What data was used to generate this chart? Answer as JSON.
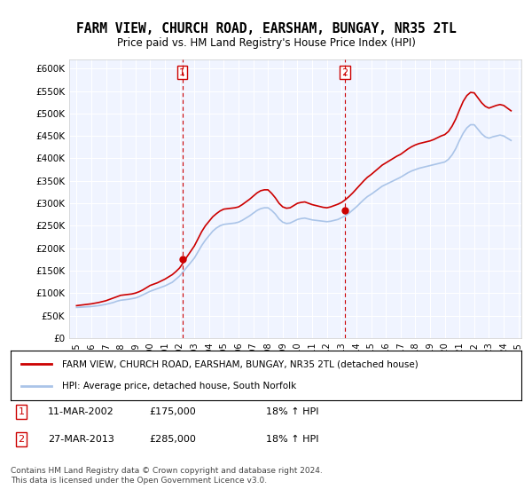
{
  "title": "FARM VIEW, CHURCH ROAD, EARSHAM, BUNGAY, NR35 2TL",
  "subtitle": "Price paid vs. HM Land Registry's House Price Index (HPI)",
  "title_fontsize": 11,
  "subtitle_fontsize": 9.5,
  "background_color": "#ffffff",
  "plot_bg_color": "#f0f4ff",
  "grid_color": "#ffffff",
  "hpi_color": "#aac4e8",
  "price_color": "#cc0000",
  "vline_color": "#cc0000",
  "xlabel": "",
  "ylabel": "",
  "ylim": [
    0,
    620000
  ],
  "yticks": [
    0,
    50000,
    100000,
    150000,
    200000,
    250000,
    300000,
    350000,
    400000,
    450000,
    500000,
    550000,
    600000
  ],
  "ytick_labels": [
    "£0",
    "£50K",
    "£100K",
    "£150K",
    "£200K",
    "£250K",
    "£300K",
    "£350K",
    "£400K",
    "£450K",
    "£500K",
    "£550K",
    "£600K"
  ],
  "sale1_date": 2002.19,
  "sale1_price": 175000,
  "sale1_label": "1",
  "sale2_date": 2013.23,
  "sale2_price": 285000,
  "sale2_label": "2",
  "legend_line1": "FARM VIEW, CHURCH ROAD, EARSHAM, BUNGAY, NR35 2TL (detached house)",
  "legend_line2": "HPI: Average price, detached house, South Norfolk",
  "table_rows": [
    [
      "1",
      "11-MAR-2002",
      "£175,000",
      "18% ↑ HPI"
    ],
    [
      "2",
      "27-MAR-2013",
      "£285,000",
      "18% ↑ HPI"
    ]
  ],
  "footnote": "Contains HM Land Registry data © Crown copyright and database right 2024.\nThis data is licensed under the Open Government Licence v3.0.",
  "hpi_data": {
    "years": [
      1995.0,
      1995.25,
      1995.5,
      1995.75,
      1996.0,
      1996.25,
      1996.5,
      1996.75,
      1997.0,
      1997.25,
      1997.5,
      1997.75,
      1998.0,
      1998.25,
      1998.5,
      1998.75,
      1999.0,
      1999.25,
      1999.5,
      1999.75,
      2000.0,
      2000.25,
      2000.5,
      2000.75,
      2001.0,
      2001.25,
      2001.5,
      2001.75,
      2002.0,
      2002.25,
      2002.5,
      2002.75,
      2003.0,
      2003.25,
      2003.5,
      2003.75,
      2004.0,
      2004.25,
      2004.5,
      2004.75,
      2005.0,
      2005.25,
      2005.5,
      2005.75,
      2006.0,
      2006.25,
      2006.5,
      2006.75,
      2007.0,
      2007.25,
      2007.5,
      2007.75,
      2008.0,
      2008.25,
      2008.5,
      2008.75,
      2009.0,
      2009.25,
      2009.5,
      2009.75,
      2010.0,
      2010.25,
      2010.5,
      2010.75,
      2011.0,
      2011.25,
      2011.5,
      2011.75,
      2012.0,
      2012.25,
      2012.5,
      2012.75,
      2013.0,
      2013.25,
      2013.5,
      2013.75,
      2014.0,
      2014.25,
      2014.5,
      2014.75,
      2015.0,
      2015.25,
      2015.5,
      2015.75,
      2016.0,
      2016.25,
      2016.5,
      2016.75,
      2017.0,
      2017.25,
      2017.5,
      2017.75,
      2018.0,
      2018.25,
      2018.5,
      2018.75,
      2019.0,
      2019.25,
      2019.5,
      2019.75,
      2020.0,
      2020.25,
      2020.5,
      2020.75,
      2021.0,
      2021.25,
      2021.5,
      2021.75,
      2022.0,
      2022.25,
      2022.5,
      2022.75,
      2023.0,
      2023.25,
      2023.5,
      2023.75,
      2024.0,
      2024.25,
      2024.5
    ],
    "values": [
      68000,
      68500,
      69000,
      69500,
      70000,
      71000,
      72000,
      73500,
      75000,
      77000,
      79000,
      82000,
      84000,
      85000,
      86000,
      87500,
      89000,
      92000,
      96000,
      100000,
      104000,
      107000,
      110000,
      113000,
      116000,
      120000,
      124000,
      131000,
      138000,
      148000,
      158000,
      168000,
      178000,
      192000,
      206000,
      218000,
      228000,
      238000,
      245000,
      250000,
      253000,
      254000,
      255000,
      256000,
      258000,
      262000,
      267000,
      272000,
      278000,
      284000,
      288000,
      290000,
      290000,
      284000,
      276000,
      265000,
      258000,
      255000,
      256000,
      260000,
      264000,
      266000,
      267000,
      265000,
      263000,
      262000,
      261000,
      260000,
      259000,
      260000,
      262000,
      264000,
      268000,
      272000,
      278000,
      285000,
      292000,
      300000,
      308000,
      315000,
      320000,
      326000,
      332000,
      338000,
      342000,
      346000,
      350000,
      354000,
      358000,
      363000,
      368000,
      372000,
      375000,
      378000,
      380000,
      382000,
      384000,
      386000,
      388000,
      390000,
      392000,
      398000,
      408000,
      422000,
      440000,
      456000,
      468000,
      475000,
      475000,
      465000,
      455000,
      448000,
      445000,
      448000,
      450000,
      452000,
      450000,
      445000,
      440000
    ]
  },
  "price_data": {
    "years": [
      1995.0,
      1995.25,
      1995.5,
      1995.75,
      1996.0,
      1996.25,
      1996.5,
      1996.75,
      1997.0,
      1997.25,
      1997.5,
      1997.75,
      1998.0,
      1998.25,
      1998.5,
      1998.75,
      1999.0,
      1999.25,
      1999.5,
      1999.75,
      2000.0,
      2000.25,
      2000.5,
      2000.75,
      2001.0,
      2001.25,
      2001.5,
      2001.75,
      2002.0,
      2002.25,
      2002.5,
      2002.75,
      2003.0,
      2003.25,
      2003.5,
      2003.75,
      2004.0,
      2004.25,
      2004.5,
      2004.75,
      2005.0,
      2005.25,
      2005.5,
      2005.75,
      2006.0,
      2006.25,
      2006.5,
      2006.75,
      2007.0,
      2007.25,
      2007.5,
      2007.75,
      2008.0,
      2008.25,
      2008.5,
      2008.75,
      2009.0,
      2009.25,
      2009.5,
      2009.75,
      2010.0,
      2010.25,
      2010.5,
      2010.75,
      2011.0,
      2011.25,
      2011.5,
      2011.75,
      2012.0,
      2012.25,
      2012.5,
      2012.75,
      2013.0,
      2013.25,
      2013.5,
      2013.75,
      2014.0,
      2014.25,
      2014.5,
      2014.75,
      2015.0,
      2015.25,
      2015.5,
      2015.75,
      2016.0,
      2016.25,
      2016.5,
      2016.75,
      2017.0,
      2017.25,
      2017.5,
      2017.75,
      2018.0,
      2018.25,
      2018.5,
      2018.75,
      2019.0,
      2019.25,
      2019.5,
      2019.75,
      2020.0,
      2020.25,
      2020.5,
      2020.75,
      2021.0,
      2021.25,
      2021.5,
      2021.75,
      2022.0,
      2022.25,
      2022.5,
      2022.75,
      2023.0,
      2023.25,
      2023.5,
      2023.75,
      2024.0,
      2024.25,
      2024.5
    ],
    "values": [
      72000,
      73000,
      74000,
      75000,
      76000,
      77500,
      79000,
      81000,
      83000,
      86000,
      89000,
      92000,
      95000,
      96000,
      97000,
      98000,
      100000,
      103000,
      107000,
      112000,
      117000,
      120000,
      123000,
      127000,
      131000,
      136000,
      141000,
      148000,
      156000,
      168000,
      181000,
      193000,
      205000,
      221000,
      237000,
      250000,
      260000,
      270000,
      277000,
      283000,
      287000,
      288000,
      289000,
      290000,
      292000,
      297000,
      303000,
      309000,
      316000,
      323000,
      328000,
      330000,
      330000,
      322000,
      312000,
      300000,
      292000,
      289000,
      290000,
      295000,
      300000,
      302000,
      303000,
      300000,
      297000,
      295000,
      293000,
      291000,
      290000,
      292000,
      295000,
      298000,
      302000,
      308000,
      315000,
      323000,
      332000,
      341000,
      350000,
      358000,
      364000,
      371000,
      378000,
      385000,
      390000,
      395000,
      400000,
      405000,
      409000,
      415000,
      421000,
      426000,
      430000,
      433000,
      435000,
      437000,
      439000,
      442000,
      446000,
      450000,
      453000,
      460000,
      472000,
      488000,
      508000,
      527000,
      540000,
      547000,
      546000,
      535000,
      524000,
      516000,
      512000,
      515000,
      518000,
      520000,
      518000,
      512000,
      506000
    ]
  }
}
